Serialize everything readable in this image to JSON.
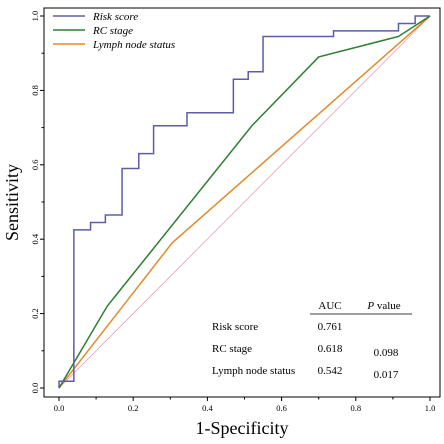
{
  "chart_data": {
    "type": "line",
    "xlabel": "1-Specificity",
    "ylabel": "Sensitivity",
    "xlim": [
      0,
      1
    ],
    "ylim": [
      0,
      1
    ],
    "x_ticks": [
      "0.0",
      "0.2",
      "0.4",
      "0.6",
      "0.8",
      "1.0"
    ],
    "y_ticks": [
      "0.0",
      "0.2",
      "0.4",
      "0.6",
      "0.8",
      "1.0"
    ],
    "grid": false,
    "legend_position": "top-left",
    "reference_line": {
      "color": "#e8a0b0",
      "points": [
        [
          0,
          0
        ],
        [
          1,
          1
        ]
      ]
    },
    "series": [
      {
        "name": "Risk score",
        "color": "#5b5ea6",
        "points": [
          [
            0.0,
            0.0
          ],
          [
            0.0,
            0.018
          ],
          [
            0.04,
            0.018
          ],
          [
            0.04,
            0.425
          ],
          [
            0.085,
            0.425
          ],
          [
            0.085,
            0.445
          ],
          [
            0.125,
            0.445
          ],
          [
            0.125,
            0.465
          ],
          [
            0.17,
            0.465
          ],
          [
            0.17,
            0.59
          ],
          [
            0.215,
            0.59
          ],
          [
            0.215,
            0.63
          ],
          [
            0.255,
            0.63
          ],
          [
            0.255,
            0.705
          ],
          [
            0.345,
            0.705
          ],
          [
            0.345,
            0.74
          ],
          [
            0.47,
            0.74
          ],
          [
            0.47,
            0.83
          ],
          [
            0.51,
            0.83
          ],
          [
            0.51,
            0.85
          ],
          [
            0.55,
            0.85
          ],
          [
            0.55,
            0.945
          ],
          [
            0.74,
            0.945
          ],
          [
            0.74,
            0.96
          ],
          [
            0.915,
            0.96
          ],
          [
            0.915,
            0.98
          ],
          [
            0.96,
            0.98
          ],
          [
            0.96,
            1.0
          ],
          [
            1.0,
            1.0
          ]
        ]
      },
      {
        "name": "RC stage",
        "color": "#2e7d32",
        "points": [
          [
            0.0,
            0.0
          ],
          [
            0.13,
            0.22
          ],
          [
            0.52,
            0.705
          ],
          [
            0.7,
            0.89
          ],
          [
            0.915,
            0.945
          ],
          [
            1.0,
            1.0
          ]
        ]
      },
      {
        "name": "Lymph node status",
        "color": "#e08a2b",
        "points": [
          [
            0.0,
            0.0
          ],
          [
            0.305,
            0.39
          ],
          [
            1.0,
            1.0
          ]
        ]
      }
    ],
    "stats_table": {
      "headers": [
        "AUC",
        "P value"
      ],
      "rows": [
        {
          "label": "Risk score",
          "auc": "0.761",
          "p": ""
        },
        {
          "label": "RC stage",
          "auc": "0.618",
          "p": "0.098"
        },
        {
          "label": "Lymph node status",
          "auc": "0.542",
          "p": "0.017"
        }
      ]
    }
  }
}
